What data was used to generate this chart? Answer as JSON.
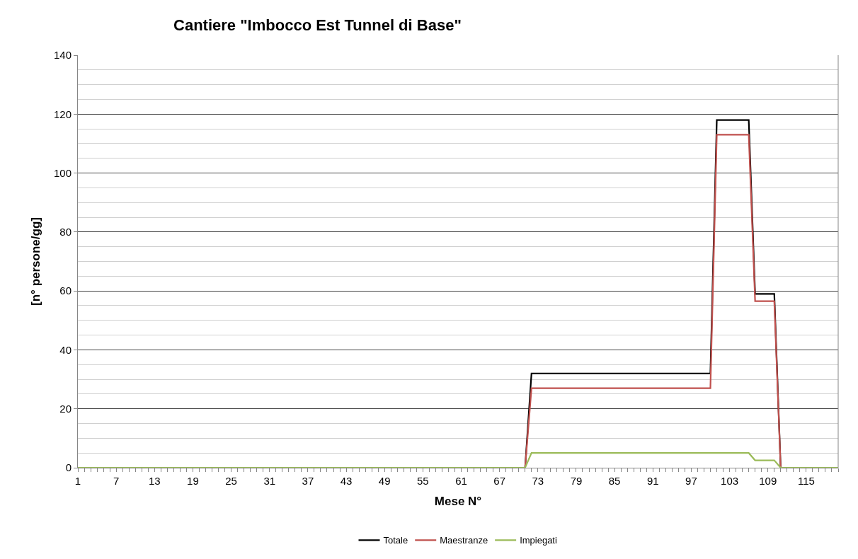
{
  "chart_data": {
    "type": "line",
    "title": "Cantiere \"Imbocco Est Tunnel di Base\"",
    "xlabel": "Mese N°",
    "ylabel": "[n° persone/gg]",
    "categories": [
      "1",
      null,
      null,
      null,
      null,
      null,
      "7",
      null,
      null,
      null,
      null,
      null,
      "13",
      null,
      null,
      null,
      null,
      null,
      "19",
      null,
      null,
      null,
      null,
      null,
      "25",
      null,
      null,
      null,
      null,
      null,
      "31",
      null,
      null,
      null,
      null,
      null,
      "37",
      null,
      null,
      null,
      null,
      null,
      "43",
      null,
      null,
      null,
      null,
      null,
      "49",
      null,
      null,
      null,
      null,
      null,
      "55",
      null,
      null,
      null,
      null,
      null,
      "61",
      null,
      null,
      null,
      null,
      null,
      "67",
      null,
      null,
      null,
      null,
      null,
      "73",
      null,
      null,
      null,
      null,
      null,
      "79",
      null,
      null,
      null,
      null,
      null,
      "85",
      null,
      null,
      null,
      null,
      null,
      "91",
      null,
      null,
      null,
      null,
      null,
      "97",
      null,
      null,
      null,
      null,
      null,
      "103",
      null,
      null,
      null,
      null,
      null,
      "109",
      null,
      null,
      null,
      null,
      null,
      "115",
      null,
      null,
      null,
      null,
      null
    ],
    "series": [
      {
        "name": "Totale",
        "color": "#000000",
        "values": [
          null,
          null,
          null,
          null,
          null,
          null,
          null,
          null,
          null,
          null,
          null,
          null,
          null,
          null,
          null,
          null,
          null,
          null,
          null,
          null,
          null,
          null,
          null,
          null,
          null,
          null,
          null,
          null,
          null,
          null,
          null,
          null,
          null,
          null,
          null,
          null,
          null,
          null,
          null,
          null,
          null,
          null,
          null,
          null,
          null,
          null,
          null,
          null,
          null,
          null,
          null,
          null,
          null,
          null,
          null,
          null,
          null,
          null,
          null,
          null,
          null,
          null,
          null,
          null,
          null,
          null,
          null,
          null,
          null,
          null,
          0,
          32,
          32,
          32,
          32,
          32,
          32,
          32,
          32,
          32,
          32,
          32,
          32,
          32,
          32,
          32,
          32,
          32,
          32,
          32,
          32,
          32,
          32,
          32,
          32,
          32,
          32,
          32,
          32,
          32,
          118,
          118,
          118,
          118,
          118,
          118,
          59,
          59,
          59,
          59,
          0,
          null,
          null,
          null,
          null,
          null,
          null,
          null,
          null,
          null
        ]
      },
      {
        "name": "Maestranze",
        "color": "#c0504d",
        "values": [
          null,
          null,
          null,
          null,
          null,
          null,
          null,
          null,
          null,
          null,
          null,
          null,
          null,
          null,
          null,
          null,
          null,
          null,
          null,
          null,
          null,
          null,
          null,
          null,
          null,
          null,
          null,
          null,
          null,
          null,
          null,
          null,
          null,
          null,
          null,
          null,
          null,
          null,
          null,
          null,
          null,
          null,
          null,
          null,
          null,
          null,
          null,
          null,
          null,
          null,
          null,
          null,
          null,
          null,
          null,
          null,
          null,
          null,
          null,
          null,
          null,
          null,
          null,
          null,
          null,
          null,
          null,
          null,
          null,
          null,
          0,
          27,
          27,
          27,
          27,
          27,
          27,
          27,
          27,
          27,
          27,
          27,
          27,
          27,
          27,
          27,
          27,
          27,
          27,
          27,
          27,
          27,
          27,
          27,
          27,
          27,
          27,
          27,
          27,
          27,
          113,
          113,
          113,
          113,
          113,
          113,
          56.5,
          56.5,
          56.5,
          56.5,
          0,
          null,
          null,
          null,
          null,
          null,
          null,
          null,
          null,
          null
        ]
      },
      {
        "name": "Impiegati",
        "color": "#9bbb59",
        "values": [
          0,
          0,
          0,
          0,
          0,
          0,
          0,
          0,
          0,
          0,
          0,
          0,
          0,
          0,
          0,
          0,
          0,
          0,
          0,
          0,
          0,
          0,
          0,
          0,
          0,
          0,
          0,
          0,
          0,
          0,
          0,
          0,
          0,
          0,
          0,
          0,
          0,
          0,
          0,
          0,
          0,
          0,
          0,
          0,
          0,
          0,
          0,
          0,
          0,
          0,
          0,
          0,
          0,
          0,
          0,
          0,
          0,
          0,
          0,
          0,
          0,
          0,
          0,
          0,
          0,
          0,
          0,
          0,
          0,
          0,
          0,
          5,
          5,
          5,
          5,
          5,
          5,
          5,
          5,
          5,
          5,
          5,
          5,
          5,
          5,
          5,
          5,
          5,
          5,
          5,
          5,
          5,
          5,
          5,
          5,
          5,
          5,
          5,
          5,
          5,
          5,
          5,
          5,
          5,
          5,
          5,
          2.5,
          2.5,
          2.5,
          2.5,
          0,
          0,
          0,
          0,
          0,
          0,
          0,
          0,
          0,
          0
        ]
      }
    ],
    "ylim": [
      0,
      140
    ],
    "yticks": [
      0,
      20,
      40,
      60,
      80,
      100,
      120,
      140
    ],
    "grid": "y",
    "legend": "bottom",
    "marker": "none",
    "line_style": "solid"
  }
}
